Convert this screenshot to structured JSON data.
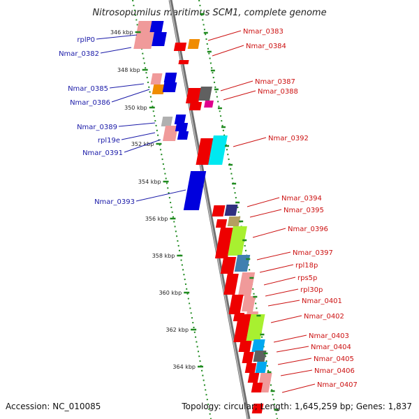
{
  "title": "Nitrosopumilus maritimus SCM1, complete genome",
  "footer": {
    "accession": "Accession: NC_010085",
    "stats": "Topology: circular; Length: 1,645,259 bp; Genes: 1,837"
  },
  "colors": {
    "backbone": "#8c8c8c",
    "ruler": "#1f8a1f",
    "left_label": "#1a1aa8",
    "right_label": "#cc1111",
    "forward_gene": "#ee0000",
    "reverse_gene": "#0000dd"
  },
  "ruler_labels": [
    "346 kbp",
    "348 kbp",
    "350 kbp",
    "352 kbp",
    "354 kbp",
    "356 kbp",
    "358 kbp",
    "360 kbp",
    "362 kbp",
    "364 kbp"
  ],
  "left_labels": [
    "rplP0",
    "Nmar_0382",
    "Nmar_0385",
    "Nmar_0386",
    "Nmar_0389",
    "rpl19e",
    "Nmar_0391",
    "Nmar_0393"
  ],
  "right_labels": [
    "Nmar_0383",
    "Nmar_0384",
    "Nmar_0387",
    "Nmar_0388",
    "Nmar_0392",
    "Nmar_0394",
    "Nmar_0395",
    "Nmar_0396",
    "Nmar_0397",
    "rpl18p",
    "rps5p",
    "rpl30p",
    "Nmar_0401",
    "Nmar_0402",
    "Nmar_0403",
    "Nmar_0404",
    "Nmar_0405",
    "Nmar_0406",
    "Nmar_0407"
  ]
}
